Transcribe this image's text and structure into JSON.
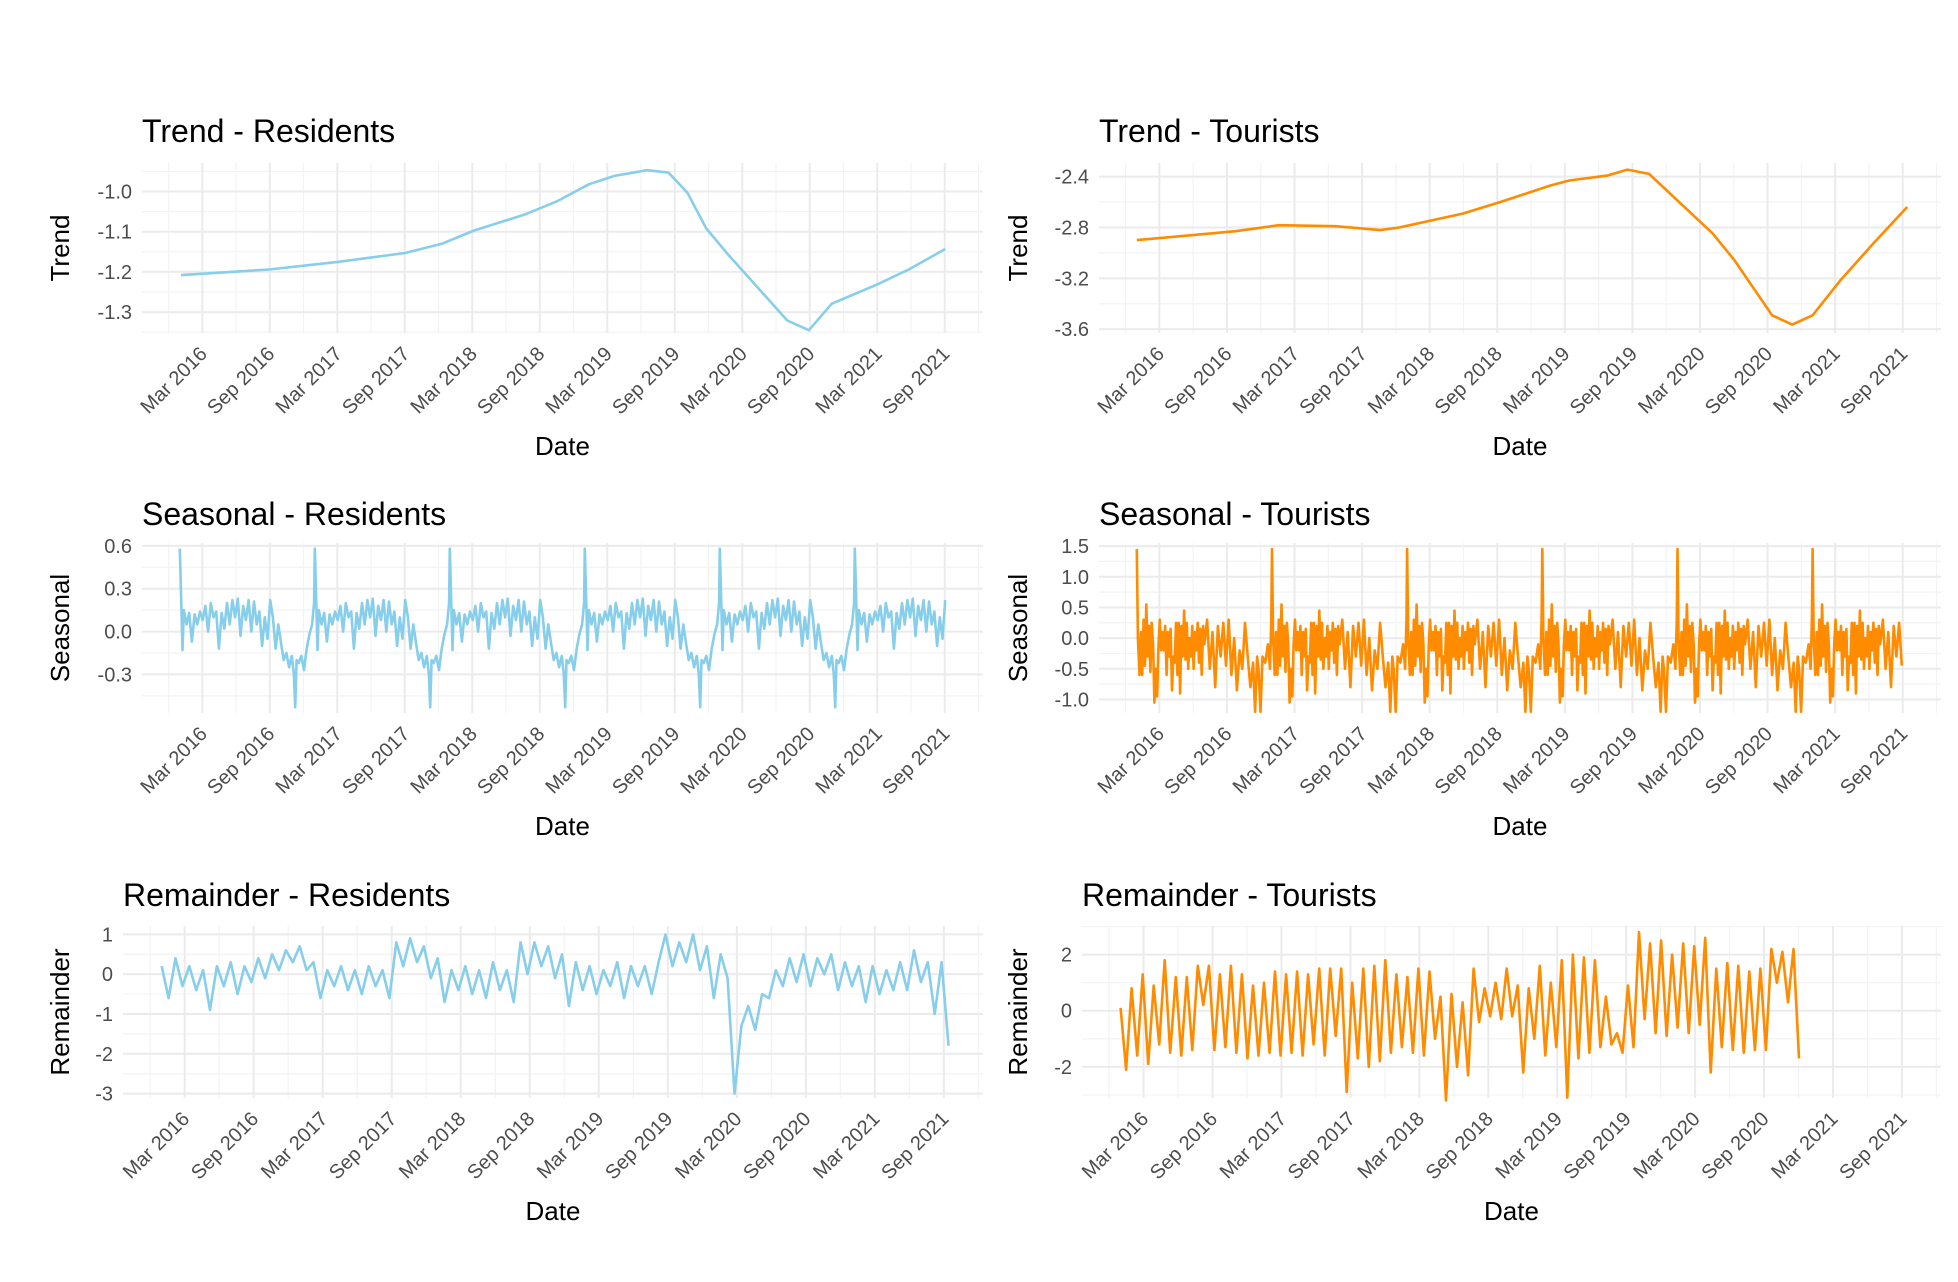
{
  "chart_data": [
    {
      "id": "trend-residents",
      "type": "line",
      "title": "Trend - Residents",
      "xlabel": "Date",
      "ylabel": "Trend",
      "color": "#87CEEB",
      "ylim": [
        -1.352,
        -0.929
      ],
      "yticks": [
        -1.0,
        -1.1,
        -1.2,
        -1.3
      ],
      "ytick_labels": [
        "-1.0",
        "-1.1",
        "-1.2",
        "-1.3"
      ],
      "grid": true,
      "points": [
        [
          2016.01,
          -1.208
        ],
        [
          2016.66,
          -1.194
        ],
        [
          2017.17,
          -1.175
        ],
        [
          2017.67,
          -1.153
        ],
        [
          2017.94,
          -1.13
        ],
        [
          2018.18,
          -1.097
        ],
        [
          2018.55,
          -1.058
        ],
        [
          2018.79,
          -1.025
        ],
        [
          2019.03,
          -0.982
        ],
        [
          2019.22,
          -0.961
        ],
        [
          2019.46,
          -0.947
        ],
        [
          2019.62,
          -0.953
        ],
        [
          2019.76,
          -1.003
        ],
        [
          2019.9,
          -1.092
        ],
        [
          2020.07,
          -1.16
        ],
        [
          2020.5,
          -1.321
        ],
        [
          2020.66,
          -1.345
        ],
        [
          2020.83,
          -1.279
        ],
        [
          2021.16,
          -1.232
        ],
        [
          2021.4,
          -1.194
        ],
        [
          2021.67,
          -1.143
        ]
      ]
    },
    {
      "id": "trend-tourists",
      "type": "line",
      "title": "Trend - Tourists",
      "xlabel": "Date",
      "ylabel": "Trend",
      "color": "#FF8C00",
      "ylim": [
        -3.63,
        -2.293
      ],
      "yticks": [
        -2.4,
        -2.8,
        -3.2,
        -3.6
      ],
      "ytick_labels": [
        "-2.4",
        "-2.8",
        "-3.2",
        "-3.6"
      ],
      "grid": true,
      "points": [
        [
          2016.0,
          -2.899
        ],
        [
          2016.73,
          -2.829
        ],
        [
          2017.05,
          -2.782
        ],
        [
          2017.47,
          -2.79
        ],
        [
          2017.8,
          -2.821
        ],
        [
          2017.94,
          -2.8
        ],
        [
          2018.41,
          -2.691
        ],
        [
          2018.69,
          -2.6
        ],
        [
          2019.06,
          -2.47
        ],
        [
          2019.2,
          -2.431
        ],
        [
          2019.48,
          -2.392
        ],
        [
          2019.63,
          -2.345
        ],
        [
          2019.79,
          -2.379
        ],
        [
          2020.26,
          -2.847
        ],
        [
          2020.42,
          -3.055
        ],
        [
          2020.7,
          -3.491
        ],
        [
          2020.85,
          -3.564
        ],
        [
          2021.0,
          -3.491
        ],
        [
          2021.21,
          -3.21
        ],
        [
          2021.45,
          -2.925
        ],
        [
          2021.7,
          -2.639
        ]
      ]
    },
    {
      "id": "seasonal-residents",
      "type": "line",
      "title": "Seasonal - Residents",
      "xlabel": "Date",
      "ylabel": "Seasonal",
      "color": "#87CEEB",
      "ylim": [
        -0.57,
        0.62
      ],
      "yticks": [
        0.6,
        0.3,
        0.0,
        -0.3
      ],
      "ytick_labels": [
        "0.6",
        "0.3",
        "0.0",
        "-0.3"
      ],
      "grid": true,
      "period": 1,
      "x_start": 2016.0,
      "x_end": 2021.67,
      "pattern": [
        [
          0,
          0.58
        ],
        [
          0.01,
          0.25
        ],
        [
          0.02,
          -0.13
        ],
        [
          0.03,
          0.15
        ],
        [
          0.05,
          0.05
        ],
        [
          0.07,
          0.13
        ],
        [
          0.09,
          -0.07
        ],
        [
          0.11,
          0.12
        ],
        [
          0.13,
          0.05
        ],
        [
          0.15,
          0.14
        ],
        [
          0.17,
          0.08
        ],
        [
          0.19,
          0.18
        ],
        [
          0.21,
          0.0
        ],
        [
          0.23,
          0.2
        ],
        [
          0.25,
          0.1
        ],
        [
          0.27,
          0.14
        ],
        [
          0.29,
          -0.12
        ],
        [
          0.31,
          0.13
        ],
        [
          0.33,
          0.02
        ],
        [
          0.35,
          0.2
        ],
        [
          0.37,
          0.05
        ],
        [
          0.39,
          0.22
        ],
        [
          0.41,
          0.1
        ],
        [
          0.43,
          0.23
        ],
        [
          0.45,
          -0.03
        ],
        [
          0.47,
          0.18
        ],
        [
          0.49,
          0.08
        ],
        [
          0.51,
          0.22
        ],
        [
          0.53,
          0.0
        ],
        [
          0.55,
          0.21
        ],
        [
          0.57,
          0.05
        ],
        [
          0.59,
          0.14
        ],
        [
          0.61,
          -0.1
        ],
        [
          0.63,
          0.1
        ],
        [
          0.65,
          -0.05
        ],
        [
          0.67,
          0.22
        ],
        [
          0.69,
          0.1
        ],
        [
          0.71,
          -0.12
        ],
        [
          0.73,
          0.05
        ],
        [
          0.75,
          -0.08
        ],
        [
          0.77,
          -0.2
        ],
        [
          0.79,
          -0.15
        ],
        [
          0.81,
          -0.25
        ],
        [
          0.83,
          -0.17
        ],
        [
          0.845,
          -0.3
        ],
        [
          0.855,
          -0.53
        ],
        [
          0.865,
          -0.2
        ],
        [
          0.88,
          -0.22
        ],
        [
          0.9,
          -0.17
        ],
        [
          0.92,
          -0.27
        ],
        [
          0.94,
          -0.12
        ],
        [
          0.96,
          -0.02
        ],
        [
          0.98,
          0.05
        ],
        [
          0.995,
          0.2
        ]
      ]
    },
    {
      "id": "seasonal-tourists",
      "type": "line",
      "title": "Seasonal - Tourists",
      "xlabel": "Date",
      "ylabel": "Seasonal",
      "color": "#FF8C00",
      "ylim": [
        -1.22,
        1.55
      ],
      "yticks": [
        1.5,
        1.0,
        0.5,
        0.0,
        -0.5,
        -1.0
      ],
      "ytick_labels": [
        "1.5",
        "1.0",
        "0.5",
        "0.0",
        "-0.5",
        "-1.0"
      ],
      "grid": true,
      "period": 1,
      "x_start": 2016.0,
      "x_end": 2021.67,
      "pattern": [
        [
          0,
          1.45
        ],
        [
          0.008,
          0.0
        ],
        [
          0.02,
          -0.6
        ],
        [
          0.03,
          0.1
        ],
        [
          0.04,
          -0.6
        ],
        [
          0.05,
          0.3
        ],
        [
          0.06,
          -0.45
        ],
        [
          0.07,
          0.55
        ],
        [
          0.08,
          -0.3
        ],
        [
          0.09,
          0.2
        ],
        [
          0.1,
          -0.55
        ],
        [
          0.11,
          0.25
        ],
        [
          0.12,
          -0.1
        ],
        [
          0.13,
          -1.05
        ],
        [
          0.14,
          -0.5
        ],
        [
          0.15,
          -0.95
        ],
        [
          0.16,
          -0.1
        ],
        [
          0.17,
          0.3
        ],
        [
          0.18,
          -0.2
        ],
        [
          0.19,
          0.1
        ],
        [
          0.2,
          -0.2
        ],
        [
          0.21,
          0.2
        ],
        [
          0.22,
          -0.6
        ],
        [
          0.23,
          0.1
        ],
        [
          0.24,
          -0.3
        ],
        [
          0.25,
          0.15
        ],
        [
          0.26,
          -0.85
        ],
        [
          0.27,
          -0.3
        ],
        [
          0.28,
          -0.4
        ],
        [
          0.29,
          0.25
        ],
        [
          0.3,
          -0.6
        ],
        [
          0.31,
          0.25
        ],
        [
          0.32,
          -0.9
        ],
        [
          0.33,
          0.2
        ],
        [
          0.34,
          -0.3
        ],
        [
          0.35,
          0.45
        ],
        [
          0.36,
          -0.35
        ],
        [
          0.37,
          0.25
        ],
        [
          0.38,
          -0.5
        ],
        [
          0.39,
          0.0
        ],
        [
          0.4,
          -0.3
        ],
        [
          0.41,
          0.2
        ],
        [
          0.42,
          -0.5
        ],
        [
          0.43,
          0.1
        ],
        [
          0.44,
          -0.2
        ],
        [
          0.45,
          0.25
        ],
        [
          0.46,
          -0.4
        ],
        [
          0.47,
          0.15
        ],
        [
          0.48,
          -0.6
        ],
        [
          0.49,
          0.2
        ],
        [
          0.5,
          -0.1
        ],
        [
          0.52,
          0.3
        ],
        [
          0.54,
          -0.5
        ],
        [
          0.56,
          0.1
        ],
        [
          0.58,
          -0.8
        ],
        [
          0.6,
          0.2
        ],
        [
          0.62,
          -0.3
        ],
        [
          0.64,
          0.25
        ],
        [
          0.66,
          -0.45
        ],
        [
          0.68,
          0.3
        ],
        [
          0.7,
          -0.6
        ],
        [
          0.72,
          0.0
        ],
        [
          0.74,
          -0.85
        ],
        [
          0.76,
          -0.2
        ],
        [
          0.78,
          -0.5
        ],
        [
          0.8,
          0.25
        ],
        [
          0.82,
          -0.3
        ],
        [
          0.84,
          -0.8
        ],
        [
          0.86,
          -0.4
        ],
        [
          0.875,
          -1.2
        ],
        [
          0.89,
          -0.3
        ],
        [
          0.9,
          -0.5
        ],
        [
          0.915,
          -1.2
        ],
        [
          0.93,
          -0.3
        ],
        [
          0.95,
          -0.4
        ],
        [
          0.97,
          -0.1
        ],
        [
          0.985,
          -0.5
        ],
        [
          0.995,
          0.3
        ]
      ]
    },
    {
      "id": "remainder-residents",
      "type": "line",
      "title": "Remainder - Residents",
      "xlabel": "Date",
      "ylabel": "Remainder",
      "color": "#87CEEB",
      "ylim": [
        -3.11,
        1.21
      ],
      "yticks": [
        1,
        0,
        -1,
        -2,
        -3
      ],
      "ytick_labels": [
        "1",
        "0",
        "-1",
        "-2",
        "-3"
      ],
      "grid": true,
      "x_start": 2016.0,
      "x_step": 0.05,
      "values": [
        0.2,
        -0.6,
        0.4,
        -0.3,
        0.2,
        -0.4,
        0.1,
        -0.9,
        0.2,
        -0.3,
        0.3,
        -0.5,
        0.2,
        -0.2,
        0.4,
        -0.1,
        0.5,
        0.1,
        0.6,
        0.3,
        0.7,
        0.1,
        0.3,
        -0.6,
        0.1,
        -0.3,
        0.2,
        -0.4,
        0.1,
        -0.5,
        0.2,
        -0.3,
        0.1,
        -0.6,
        0.8,
        0.2,
        0.9,
        0.3,
        0.7,
        -0.1,
        0.4,
        -0.7,
        0.1,
        -0.4,
        0.2,
        -0.5,
        0.1,
        -0.6,
        0.3,
        -0.4,
        0.1,
        -0.7,
        0.8,
        0.0,
        0.8,
        0.2,
        0.7,
        -0.1,
        0.5,
        -0.8,
        0.3,
        -0.4,
        0.2,
        -0.5,
        0.1,
        -0.3,
        0.3,
        -0.6,
        0.2,
        -0.3,
        0.2,
        -0.5,
        0.3,
        1.0,
        0.2,
        0.8,
        0.3,
        1.0,
        0.1,
        0.7,
        -0.6,
        0.5,
        -0.1,
        -3.0,
        -1.3,
        -0.8,
        -1.4,
        -0.5,
        -0.6,
        0.1,
        -0.3,
        0.4,
        -0.2,
        0.5,
        -0.3,
        0.4,
        0.0,
        0.5,
        -0.4,
        0.3,
        -0.3,
        0.2,
        -0.7,
        0.2,
        -0.5,
        0.1,
        -0.4,
        0.3,
        -0.4,
        0.6,
        -0.2,
        0.3,
        -1.0,
        0.3,
        -1.8
      ]
    },
    {
      "id": "remainder-tourists",
      "type": "line",
      "title": "Remainder - Tourists",
      "xlabel": "Date",
      "ylabel": "Remainder",
      "color": "#FF8C00",
      "ylim": [
        -3.11,
        3.02
      ],
      "yticks": [
        2,
        0,
        -2
      ],
      "ytick_labels": [
        "2",
        "0",
        "-2"
      ],
      "grid": true,
      "x_start": 2016.0,
      "x_step": 0.04,
      "values": [
        0.1,
        -2.1,
        0.8,
        -1.6,
        1.3,
        -1.9,
        0.9,
        -1.2,
        1.8,
        -1.5,
        1.2,
        -1.6,
        1.2,
        -1.4,
        1.6,
        0.2,
        1.6,
        -1.4,
        1.3,
        -1.3,
        1.6,
        -1.5,
        1.3,
        -1.7,
        0.9,
        -1.6,
        1.0,
        -1.5,
        1.4,
        -1.6,
        1.3,
        -1.5,
        1.4,
        -1.6,
        1.3,
        -1.2,
        1.5,
        -1.6,
        1.5,
        -0.9,
        1.5,
        -2.9,
        1.0,
        -1.7,
        1.5,
        -2.0,
        1.6,
        -1.8,
        1.8,
        -1.5,
        1.3,
        -1.3,
        1.2,
        -1.5,
        1.5,
        -1.6,
        1.4,
        -1.0,
        0.5,
        -3.2,
        0.6,
        -2.0,
        0.3,
        -2.3,
        1.5,
        -0.4,
        0.8,
        -0.2,
        1.0,
        -0.3,
        1.5,
        -0.2,
        0.9,
        -2.2,
        0.8,
        -1.0,
        1.6,
        -1.6,
        1.0,
        -1.3,
        1.8,
        -3.1,
        2.0,
        -1.7,
        1.9,
        -1.5,
        1.8,
        -1.3,
        0.5,
        -1.2,
        -0.8,
        -1.5,
        0.9,
        -1.3,
        2.8,
        -0.3,
        2.4,
        -0.8,
        2.5,
        -0.9,
        2.0,
        -0.6,
        2.4,
        -0.8,
        2.3,
        -0.5,
        2.6,
        -2.2,
        1.5,
        -1.3,
        1.7,
        -1.4,
        1.6,
        -1.5,
        1.4,
        -1.4,
        1.5,
        -1.4,
        2.2,
        1.0,
        2.1,
        0.3,
        2.2,
        -1.7
      ]
    }
  ],
  "x_axis": {
    "domain": [
      2015.72,
      2021.95
    ],
    "tick_labels": [
      "Mar 2016",
      "Sep 2016",
      "Mar 2017",
      "Sep 2017",
      "Mar 2018",
      "Sep 2018",
      "Mar 2019",
      "Sep 2019",
      "Mar 2020",
      "Sep 2020",
      "Mar 2021",
      "Sep 2021"
    ],
    "tick_values": [
      2016.1667,
      2016.6667,
      2017.1667,
      2017.6667,
      2018.1667,
      2018.6667,
      2019.1667,
      2019.6667,
      2020.1667,
      2020.6667,
      2021.1667,
      2021.6667
    ]
  }
}
